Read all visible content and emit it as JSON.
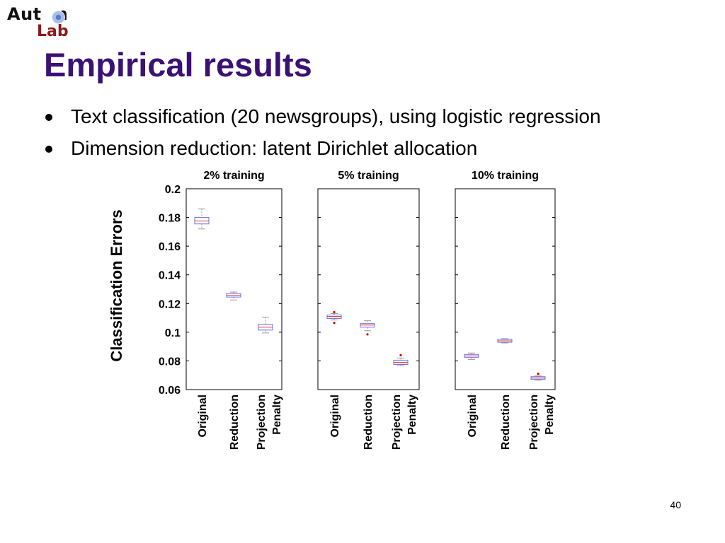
{
  "logo": {
    "text_part1": "Aut",
    "text_part2": "n",
    "text_line2": "Lab"
  },
  "title": "Empirical results",
  "bullets": [
    "Text classification (20 newsgroups), using logistic regression",
    "Dimension reduction: latent Dirichlet allocation"
  ],
  "page_number": "40",
  "colors": {
    "title": "#3b1173",
    "box": "#6f6fe0",
    "median": "#e03a3a",
    "whisker": "#9a9a9a",
    "outlier": "#d00000",
    "logo_lab": "#8b1a1a"
  },
  "chart_data": {
    "type": "box",
    "ylabel": "Classification Errors",
    "ylim": [
      0.06,
      0.2
    ],
    "yticks": [
      "0.06",
      "0.08",
      "0.1",
      "0.12",
      "0.14",
      "0.16",
      "0.18",
      "0.2"
    ],
    "ytick_values": [
      0.06,
      0.08,
      0.1,
      0.12,
      0.14,
      0.16,
      0.18,
      0.2
    ],
    "categories": [
      "Original",
      "Reduction",
      "Projection Penalty"
    ],
    "panels": [
      {
        "title": "2% training",
        "boxes": [
          {
            "category": "Original",
            "low": 0.172,
            "q1": 0.1755,
            "median": 0.1775,
            "q3": 0.18,
            "high": 0.186,
            "outliers": []
          },
          {
            "category": "Reduction",
            "low": 0.1225,
            "q1": 0.1245,
            "median": 0.1258,
            "q3": 0.127,
            "high": 0.128,
            "outliers": []
          },
          {
            "category": "Projection Penalty",
            "low": 0.0995,
            "q1": 0.1015,
            "median": 0.1035,
            "q3": 0.1055,
            "high": 0.1105,
            "outliers": []
          }
        ]
      },
      {
        "title": "5% training",
        "boxes": [
          {
            "category": "Original",
            "low": 0.1085,
            "q1": 0.1095,
            "median": 0.111,
            "q3": 0.112,
            "high": 0.113,
            "outliers": [
              0.114,
              0.1065
            ]
          },
          {
            "category": "Reduction",
            "low": 0.101,
            "q1": 0.1035,
            "median": 0.105,
            "q3": 0.106,
            "high": 0.108,
            "outliers": [
              0.0985
            ]
          },
          {
            "category": "Projection Penalty",
            "low": 0.0765,
            "q1": 0.0775,
            "median": 0.079,
            "q3": 0.0805,
            "high": 0.082,
            "outliers": [
              0.084
            ]
          }
        ]
      },
      {
        "title": "10% training",
        "boxes": [
          {
            "category": "Original",
            "low": 0.081,
            "q1": 0.0825,
            "median": 0.0835,
            "q3": 0.0845,
            "high": 0.0855,
            "outliers": []
          },
          {
            "category": "Reduction",
            "low": 0.0925,
            "q1": 0.093,
            "median": 0.094,
            "q3": 0.095,
            "high": 0.0955,
            "outliers": []
          },
          {
            "category": "Projection Penalty",
            "low": 0.0665,
            "q1": 0.0672,
            "median": 0.068,
            "q3": 0.069,
            "high": 0.0695,
            "outliers": [
              0.071
            ]
          }
        ]
      }
    ]
  }
}
